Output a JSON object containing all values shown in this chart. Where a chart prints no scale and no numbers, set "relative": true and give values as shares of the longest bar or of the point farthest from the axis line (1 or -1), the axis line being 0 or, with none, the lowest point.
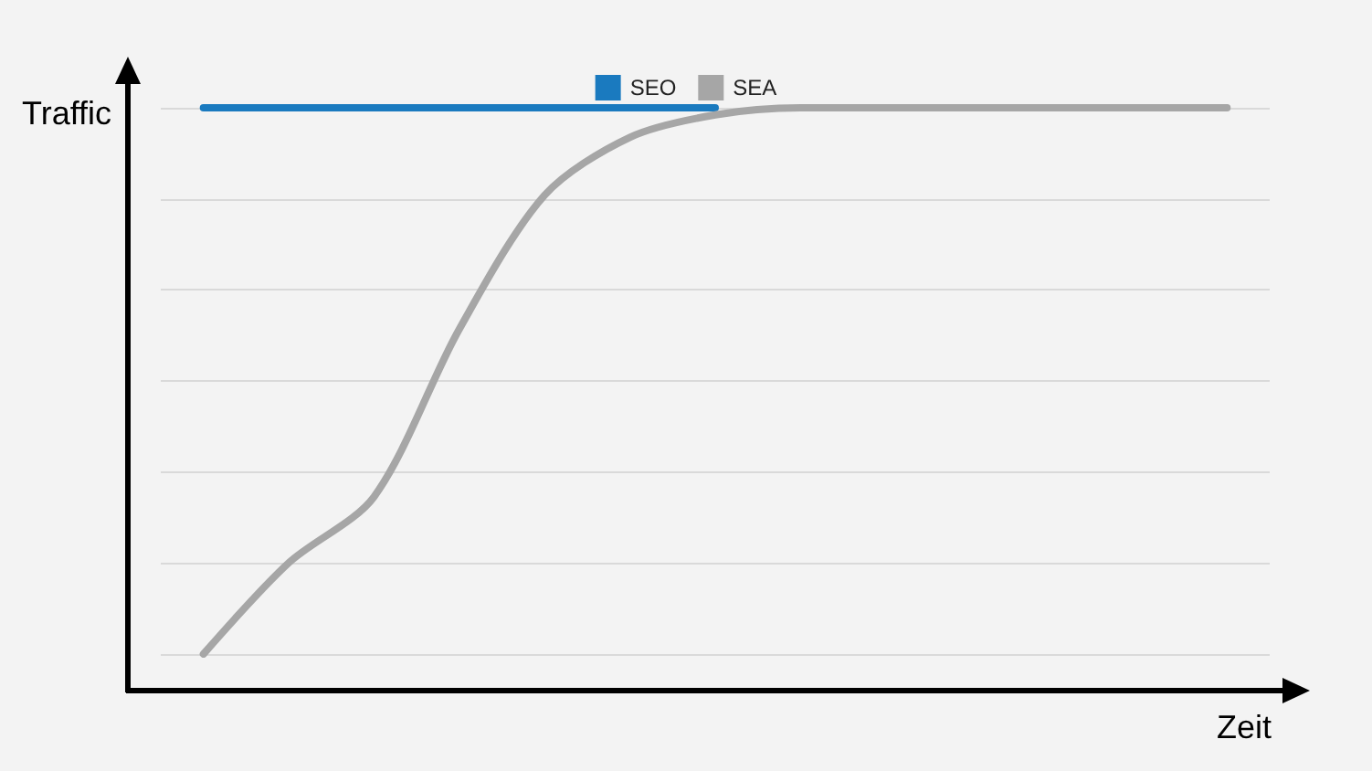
{
  "chart_data": {
    "type": "line",
    "xlabel": "Zeit",
    "ylabel": "Traffic",
    "relative": true,
    "grid": "y",
    "legend": "top",
    "marker": "none",
    "categories": [
      null,
      null,
      null,
      null,
      null,
      null,
      null,
      null,
      null,
      null,
      null,
      null,
      null
    ],
    "series": [
      {
        "name": "SEO",
        "color": "#1a7abf",
        "values": [
          1,
          1,
          1,
          1,
          1,
          1,
          1,
          null,
          null,
          null,
          null,
          null,
          null
        ]
      },
      {
        "name": "SEA",
        "color": "#a6a6a6",
        "values": [
          0,
          0.167,
          0.288,
          0.595,
          0.84,
          0.946,
          0.987,
          1,
          1,
          1,
          1,
          1,
          1
        ]
      }
    ]
  }
}
